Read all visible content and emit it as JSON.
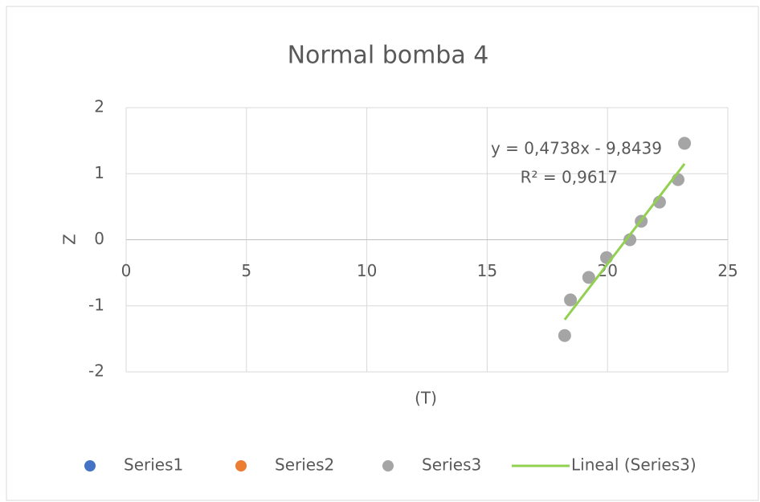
{
  "chart_data": {
    "type": "scatter",
    "title": "Normal bomba 4",
    "x_label": "(T)",
    "y_label": "Z",
    "xlim": [
      0,
      25
    ],
    "xticks": [
      0,
      5,
      10,
      15,
      20,
      25
    ],
    "ylim": [
      -2,
      2
    ],
    "yticks": [
      -2,
      -1,
      0,
      1,
      2
    ],
    "grid": true,
    "legend": "bottom",
    "series": [
      {
        "name": "Series1",
        "color": "#4472c4",
        "x": [],
        "values": []
      },
      {
        "name": "Series2",
        "color": "#ed7d31",
        "x": [],
        "values": []
      },
      {
        "name": "Series3",
        "color": "#a5a5a5",
        "x": [
          18.22,
          18.46,
          19.22,
          19.96,
          20.93,
          21.4,
          22.16,
          22.93,
          23.2
        ],
        "values": [
          -1.45,
          -0.91,
          -0.57,
          -0.27,
          0,
          0.28,
          0.57,
          0.91,
          1.46
        ]
      },
      {
        "name": "Lineal (Series3)",
        "color": "#92d050",
        "line": true,
        "x": [
          18.22,
          23.2
        ],
        "values": [
          -1.21,
          1.15
        ]
      }
    ],
    "annotations": [
      "y = 0,4738x - 9,8439",
      "R² = 0,9617"
    ]
  }
}
